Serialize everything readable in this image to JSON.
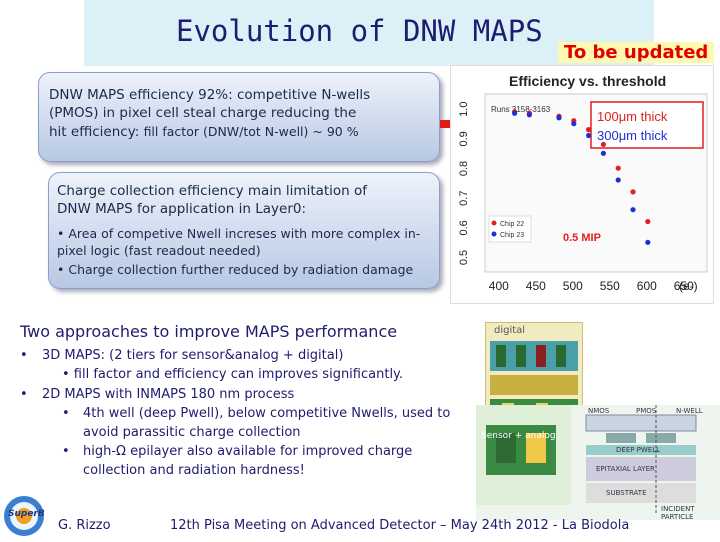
{
  "slide": {
    "title": "Evolution of DNW MAPS",
    "badge": "To be updated",
    "box1": {
      "line1": "DNW MAPS efficiency 92%: competitive N-wells",
      "line2": "(PMOS) in pixel cell steal charge reducing the",
      "line3_a": "hit efficiency: ",
      "line3_b": "fill factor (DNW/tot N-well) ~ 90 %"
    },
    "box2": {
      "line1": "Charge collection efficiency main limitation of",
      "line2": "DNW MAPS for application in Layer0:",
      "bullet1_a": "• Area of competive Nwell increses with more complex in-",
      "bullet1_b": "pixel logic (fast readout needed)",
      "bullet2": "• Charge collection further reduced by radiation damage"
    },
    "approaches": {
      "title": "Two approaches to improve MAPS performance",
      "b1_mark": "•",
      "b1_head": "3D MAPS: ",
      "b1_text": "(2 tiers for sensor&analog + digital)",
      "b1_sub": "•  fill factor and efficiency can improves significantly.",
      "b2_mark": "•",
      "b2_head": "2D MAPS with INMAPS 180 nm process",
      "b2_sub1_mark": "•",
      "b2_sub1_a": "4th well (deep Pwell), below competitive Nwells, used to",
      "b2_sub1_b": "avoid parassitic charge collection",
      "b2_sub2_mark": "•",
      "b2_sub2_a": "high-Ω epilayer  also available for improved charge",
      "b2_sub2_b": "collection and radiation hardness!"
    },
    "footer": {
      "author": "G. Rizzo",
      "event": "12th Pisa Meeting on Advanced Detector – May 24th 2012 - La Biodola",
      "logo_text": "SuperB"
    },
    "figure_labels": {
      "digital": "digital",
      "sensor_analog": "Sensor + analog",
      "nmos": "NMOS",
      "pmos": "PMOS",
      "nwell": "N-WELL",
      "deep_pwell": "DEEP PWELL",
      "epi": "EPITAXIAL LAYER",
      "substrate": "SUBSTRATE",
      "incident": "INCIDENT PARTICLE"
    }
  },
  "chart_data": {
    "type": "scatter",
    "title": "Efficiency vs. threshold",
    "runs_label": "Runs 3158-3163",
    "xlabel": "(e-)",
    "x_ticks": [
      400,
      450,
      500,
      550,
      600,
      650
    ],
    "y_ticks": [
      0.5,
      0.6,
      0.7,
      0.8,
      0.9,
      1.0
    ],
    "xlim": [
      380,
      680
    ],
    "ylim": [
      0.45,
      1.05
    ],
    "legend_thick1": "100μm thick",
    "legend_thick2": "300μm thick",
    "annotation": "0.5 MIP",
    "series": [
      {
        "name": "Chip 22",
        "color": "#e02020",
        "x": [
          420,
          440,
          480,
          500,
          520,
          540,
          560,
          580,
          600
        ],
        "y": [
          0.99,
          0.985,
          0.975,
          0.96,
          0.93,
          0.88,
          0.8,
          0.72,
          0.62
        ]
      },
      {
        "name": "Chip 23",
        "color": "#2030d0",
        "x": [
          420,
          440,
          480,
          500,
          520,
          540,
          560,
          580,
          600
        ],
        "y": [
          0.985,
          0.98,
          0.97,
          0.95,
          0.91,
          0.85,
          0.76,
          0.66,
          0.55
        ]
      }
    ]
  }
}
